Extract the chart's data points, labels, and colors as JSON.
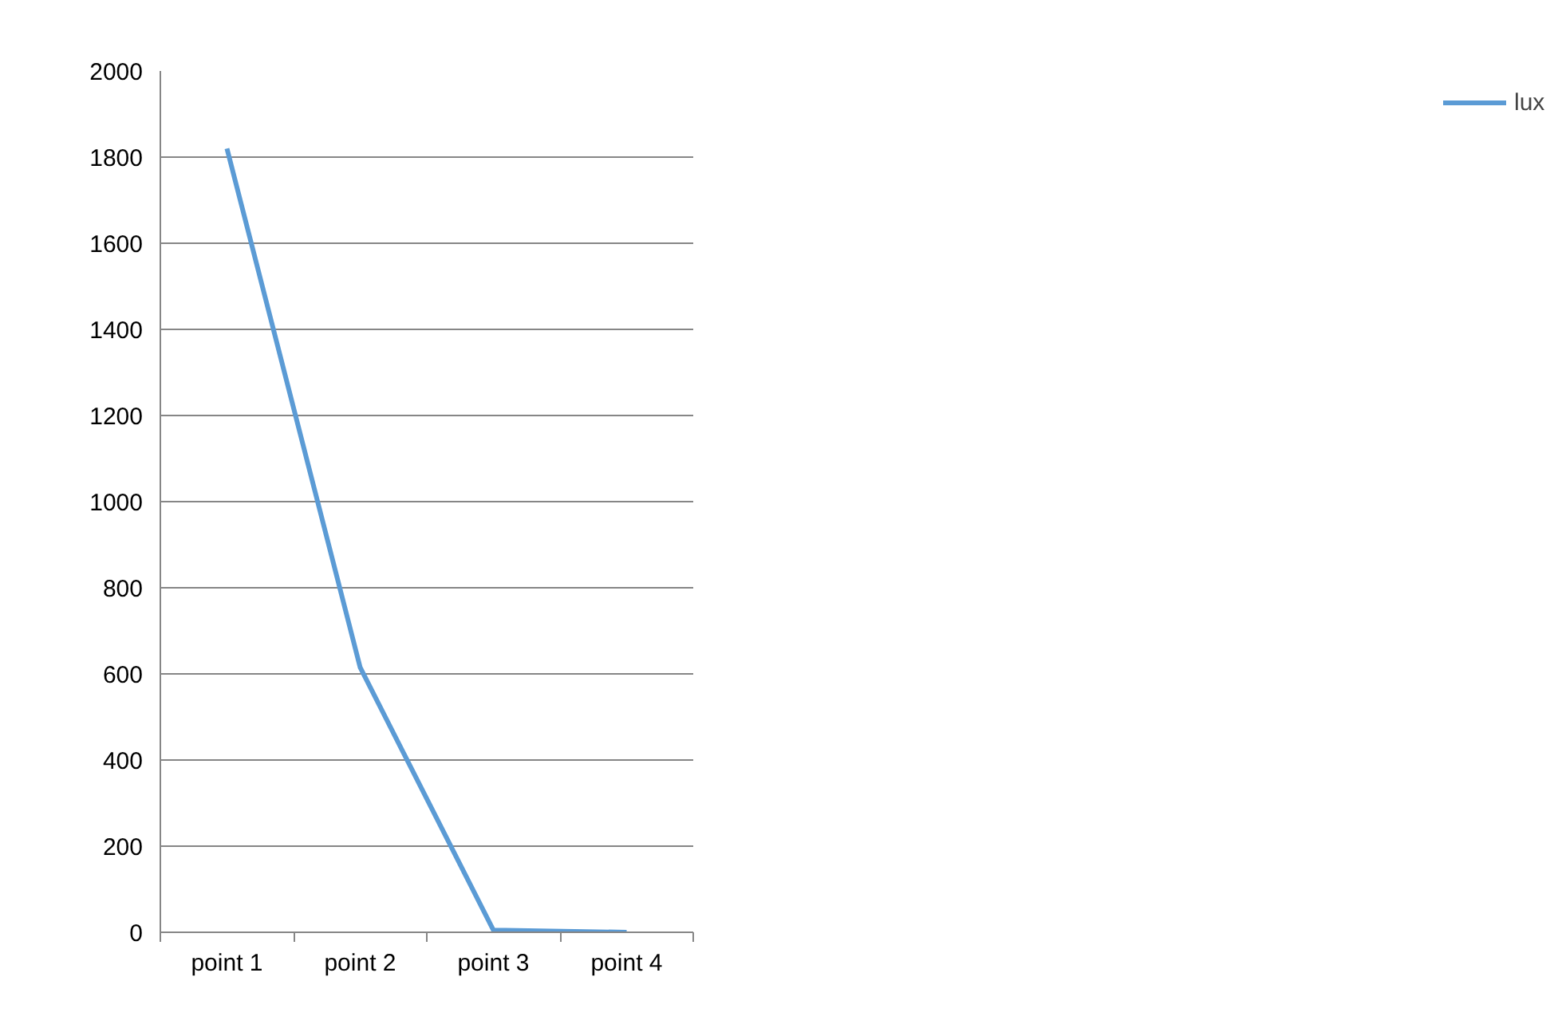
{
  "chart_data": {
    "type": "line",
    "categories": [
      "point 1",
      "point 2",
      "point 3",
      "point 4"
    ],
    "series": [
      {
        "name": "lux",
        "color": "#5b9bd5",
        "values": [
          1820,
          615,
          5,
          0
        ]
      }
    ],
    "ylim": [
      0,
      2000
    ],
    "yticks": [
      0,
      200,
      400,
      600,
      800,
      1000,
      1200,
      1400,
      1600,
      1800,
      2000
    ],
    "grid": "y",
    "legend": "right",
    "marker": "none",
    "line_style": "solid"
  }
}
